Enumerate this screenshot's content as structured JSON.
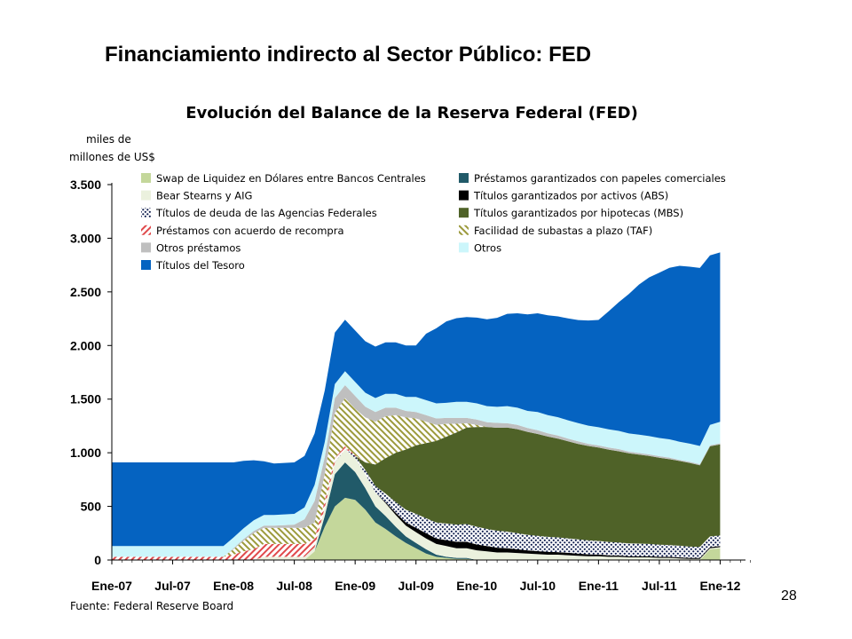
{
  "slide": {
    "title": "Financiamiento indirecto al Sector Público: FED",
    "page_number": "28"
  },
  "chart_data": {
    "type": "area",
    "stacked": true,
    "title": "Evolución del Balance de la Reserva Federal (FED)",
    "ylabel_line1": "miles de",
    "ylabel_line2": "millones de US$",
    "source": "Fuente: Federal Reserve Board",
    "ylim": [
      0,
      3500
    ],
    "yticks": [
      0,
      500,
      1000,
      1500,
      2000,
      2500,
      3000,
      3500
    ],
    "ytick_labels": [
      "0",
      "500",
      "1.000",
      "1.500",
      "2.000",
      "2.500",
      "3.000",
      "3.500"
    ],
    "x_tick_labels": [
      "Ene-07",
      "Jul-07",
      "Ene-08",
      "Jul-08",
      "Ene-09",
      "Jul-09",
      "Ene-10",
      "Jul-10",
      "Ene-11",
      "Jul-11",
      "Ene-12"
    ],
    "x_tick_pos": [
      0,
      6,
      12,
      18,
      24,
      30,
      36,
      42,
      48,
      54,
      60
    ],
    "x_month_index": [
      0,
      3,
      6,
      9,
      11,
      12,
      13,
      14,
      15,
      17,
      18,
      19,
      20,
      21,
      22,
      23,
      24,
      25,
      26,
      27,
      28,
      29,
      30,
      31,
      32,
      33,
      34,
      35,
      36,
      39,
      42,
      45,
      48,
      51,
      54,
      57,
      59,
      60,
      63
    ],
    "legend_position": "top-left inside, two columns",
    "series": [
      {
        "name": "Swap de Liquidez en Dólares entre Bancos Centrales",
        "color": "#c4d79b",
        "pattern": "solid",
        "values": [
          0,
          0,
          0,
          0,
          0,
          0,
          0,
          0,
          0,
          0,
          0,
          0,
          0,
          0,
          0,
          0,
          0,
          0,
          0,
          0,
          0,
          0,
          0,
          0,
          0,
          0,
          0,
          0,
          0,
          0,
          0,
          0,
          0,
          0,
          0,
          0,
          0,
          0,
          0
        ]
      },
      {
        "name": "Préstamos garantizados con papeles comerciales",
        "color": "#215a69",
        "pattern": "solid",
        "values": [
          0,
          0,
          0,
          0,
          0,
          0,
          0,
          0,
          0,
          0,
          0,
          0,
          0,
          0,
          0,
          0,
          0,
          0,
          0,
          0,
          0,
          0,
          0,
          0,
          0,
          0,
          0,
          0,
          0,
          0,
          0,
          0,
          0,
          0,
          0,
          0,
          0,
          0,
          0
        ]
      },
      {
        "name": "Bear Stearns y AIG",
        "color": "#ebf1de",
        "pattern": "solid",
        "values": [
          0,
          0,
          0,
          0,
          0,
          0,
          0,
          0,
          0,
          0,
          0,
          0,
          0,
          0,
          0,
          0,
          0,
          0,
          0,
          0,
          0,
          0,
          0,
          0,
          0,
          0,
          0,
          0,
          0,
          0,
          0,
          0,
          0,
          0,
          0,
          0,
          0,
          0,
          0
        ]
      },
      {
        "name": "Títulos garantizados por activos (ABS)",
        "color": "#000000",
        "pattern": "solid",
        "values": [
          0,
          0,
          0,
          0,
          0,
          0,
          0,
          0,
          0,
          0,
          0,
          0,
          0,
          0,
          0,
          0,
          0,
          0,
          0,
          0,
          0,
          0,
          0,
          0,
          0,
          0,
          0,
          0,
          0,
          0,
          0,
          0,
          0,
          0,
          0,
          0,
          0,
          0,
          0
        ]
      },
      {
        "name": "Títulos de deuda de las Agencias Federales",
        "color": "#0d1b4c",
        "pattern": "dots",
        "values": [
          0,
          0,
          0,
          0,
          0,
          0,
          0,
          0,
          0,
          0,
          0,
          0,
          0,
          0,
          0,
          0,
          0,
          0,
          0,
          0,
          0,
          0,
          0,
          0,
          0,
          0,
          0,
          0,
          0,
          0,
          0,
          0,
          0,
          0,
          0,
          0,
          0,
          0,
          0
        ]
      },
      {
        "name": "Títulos garantizados por hipotecas (MBS)",
        "color": "#4f6228",
        "pattern": "solid",
        "values": [
          0,
          0,
          0,
          0,
          0,
          0,
          0,
          0,
          0,
          0,
          0,
          0,
          0,
          0,
          0,
          0,
          0,
          0,
          0,
          0,
          0,
          0,
          0,
          0,
          0,
          0,
          0,
          0,
          0,
          0,
          0,
          0,
          0,
          0,
          0,
          0,
          0,
          0,
          0
        ]
      },
      {
        "name": "Préstamos con acuerdo de recompra",
        "color": "#e0494b",
        "pattern": "hatch",
        "values": [
          30,
          30,
          35,
          40,
          45,
          50,
          55,
          60,
          65,
          70,
          75,
          80,
          80,
          80,
          80,
          80,
          80,
          80,
          80,
          80,
          80,
          80,
          80,
          80,
          80,
          80,
          80,
          80,
          80,
          80,
          80,
          80,
          80,
          80,
          80,
          80,
          80,
          80,
          80
        ]
      },
      {
        "name": "Facilidad de subastas a plazo (TAF)",
        "color": "#9c9a3c",
        "pattern": "hatch",
        "values": [
          0,
          0,
          0,
          0,
          0,
          0,
          0,
          0,
          0,
          0,
          0,
          0,
          0,
          0,
          0,
          0,
          0,
          0,
          0,
          0,
          0,
          0,
          0,
          0,
          0,
          0,
          0,
          0,
          0,
          0,
          0,
          0,
          0,
          0,
          0,
          0,
          0,
          0,
          0
        ]
      },
      {
        "name": "Otros préstamos",
        "color": "#bfbfbf",
        "pattern": "solid",
        "values": [
          0,
          0,
          0,
          0,
          0,
          0,
          0,
          0,
          0,
          0,
          0,
          0,
          0,
          0,
          0,
          0,
          0,
          0,
          0,
          0,
          0,
          0,
          0,
          0,
          0,
          0,
          0,
          0,
          0,
          0,
          0,
          0,
          0,
          0,
          0,
          0,
          0,
          0,
          0
        ]
      },
      {
        "name": "Otros",
        "color": "#ccf6fb",
        "pattern": "solid",
        "values": [
          0,
          0,
          0,
          0,
          0,
          0,
          0,
          0,
          0,
          0,
          0,
          0,
          0,
          0,
          0,
          0,
          0,
          0,
          0,
          0,
          0,
          0,
          0,
          0,
          0,
          0,
          0,
          0,
          0,
          0,
          0,
          0,
          0,
          0,
          0,
          0,
          0,
          0,
          0
        ]
      },
      {
        "name": "Títulos del Tesoro",
        "color": "#0563c1",
        "pattern": "solid",
        "values": [
          0,
          0,
          0,
          0,
          0,
          0,
          0,
          0,
          0,
          0,
          0,
          0,
          0,
          0,
          0,
          0,
          0,
          0,
          0,
          0,
          0,
          0,
          0,
          0,
          0,
          0,
          0,
          0,
          0,
          0,
          0,
          0,
          0,
          0,
          0,
          0,
          0,
          0,
          0
        ]
      }
    ],
    "series_values_cumulative_boundaries": {
      "note_removed": true
    },
    "stacked_values": {
      "swap": [
        0,
        0,
        0,
        0,
        0,
        0,
        0,
        0,
        0,
        0,
        0,
        0,
        0,
        0,
        0,
        0,
        0,
        0,
        0,
        0,
        80,
        310,
        500,
        580,
        560,
        470,
        350,
        290,
        220,
        160,
        110,
        60,
        30,
        20,
        10,
        10,
        0,
        0,
        0,
        0,
        0,
        0,
        0,
        0,
        0,
        0,
        0,
        0,
        0,
        0,
        0,
        0,
        0,
        0,
        0,
        0,
        0,
        0,
        0,
        100,
        110
      ],
      "cp": [
        0,
        0,
        0,
        0,
        0,
        0,
        0,
        0,
        0,
        0,
        0,
        0,
        0,
        0,
        0,
        0,
        0,
        0,
        0,
        0,
        0,
        100,
        300,
        330,
        260,
        200,
        150,
        120,
        90,
        60,
        50,
        40,
        20,
        10,
        10,
        10,
        0,
        0,
        0,
        0,
        0,
        0,
        0,
        0,
        0,
        0,
        0,
        0,
        0,
        0,
        0,
        0,
        0,
        0,
        0,
        0,
        0,
        0,
        0,
        0,
        0
      ],
      "bear": [
        0,
        0,
        0,
        0,
        0,
        0,
        0,
        0,
        0,
        0,
        0,
        0,
        0,
        0,
        0,
        30,
        30,
        30,
        30,
        30,
        40,
        80,
        110,
        120,
        130,
        130,
        130,
        120,
        110,
        100,
        100,
        100,
        100,
        100,
        90,
        90,
        90,
        80,
        70,
        70,
        65,
        60,
        55,
        50,
        50,
        45,
        40,
        35,
        35,
        30,
        30,
        25,
        25,
        25,
        20,
        20,
        15,
        10,
        10,
        10,
        10
      ],
      "abs": [
        0,
        0,
        0,
        0,
        0,
        0,
        0,
        0,
        0,
        0,
        0,
        0,
        0,
        0,
        0,
        0,
        0,
        0,
        0,
        0,
        0,
        0,
        0,
        0,
        0,
        0,
        0,
        10,
        20,
        30,
        40,
        50,
        50,
        55,
        60,
        60,
        55,
        50,
        45,
        40,
        35,
        30,
        28,
        26,
        24,
        22,
        20,
        18,
        16,
        14,
        12,
        10,
        10,
        10,
        10,
        10,
        10,
        10,
        10,
        10,
        10
      ],
      "agency": [
        0,
        0,
        0,
        0,
        0,
        0,
        0,
        0,
        0,
        0,
        0,
        0,
        0,
        0,
        0,
        0,
        0,
        0,
        0,
        0,
        0,
        0,
        0,
        10,
        20,
        40,
        60,
        80,
        100,
        120,
        130,
        140,
        150,
        155,
        160,
        165,
        165,
        160,
        158,
        155,
        150,
        145,
        142,
        140,
        137,
        135,
        132,
        130,
        127,
        125,
        122,
        120,
        118,
        115,
        113,
        110,
        108,
        105,
        103,
        100,
        98
      ],
      "mbs": [
        0,
        0,
        0,
        0,
        0,
        0,
        0,
        0,
        0,
        0,
        0,
        0,
        0,
        0,
        0,
        0,
        0,
        0,
        0,
        0,
        0,
        0,
        0,
        0,
        0,
        70,
        200,
        330,
        460,
        560,
        640,
        700,
        760,
        810,
        860,
        900,
        930,
        950,
        960,
        970,
        970,
        960,
        950,
        935,
        920,
        905,
        890,
        880,
        870,
        860,
        850,
        840,
        830,
        820,
        810,
        800,
        790,
        780,
        760,
        840,
        850
      ],
      "repo": [
        30,
        30,
        30,
        30,
        30,
        30,
        30,
        30,
        30,
        30,
        30,
        30,
        50,
        80,
        100,
        120,
        120,
        120,
        120,
        120,
        80,
        60,
        40,
        20,
        10,
        0,
        0,
        0,
        0,
        0,
        0,
        0,
        0,
        0,
        0,
        0,
        0,
        0,
        0,
        0,
        0,
        0,
        0,
        0,
        0,
        0,
        0,
        0,
        0,
        0,
        0,
        0,
        0,
        0,
        0,
        0,
        0,
        0,
        0,
        0,
        0
      ],
      "taf": [
        0,
        0,
        0,
        0,
        0,
        0,
        0,
        0,
        0,
        0,
        0,
        0,
        50,
        100,
        150,
        150,
        150,
        150,
        150,
        150,
        150,
        250,
        420,
        450,
        430,
        420,
        400,
        390,
        350,
        300,
        250,
        200,
        150,
        120,
        80,
        40,
        20,
        0,
        0,
        0,
        0,
        0,
        0,
        0,
        0,
        0,
        0,
        0,
        0,
        0,
        0,
        0,
        0,
        0,
        0,
        0,
        0,
        0,
        0,
        0,
        0
      ],
      "other_loans": [
        0,
        0,
        0,
        0,
        0,
        0,
        0,
        0,
        0,
        0,
        0,
        0,
        10,
        15,
        20,
        20,
        20,
        25,
        30,
        80,
        200,
        160,
        140,
        120,
        120,
        100,
        90,
        80,
        70,
        60,
        60,
        60,
        60,
        55,
        55,
        50,
        50,
        45,
        45,
        40,
        40,
        35,
        35,
        30,
        30,
        25,
        25,
        20,
        20,
        20,
        20,
        15,
        15,
        15,
        15,
        15,
        10,
        10,
        10,
        10,
        10
      ],
      "others": [
        100,
        100,
        100,
        100,
        100,
        100,
        100,
        100,
        100,
        100,
        100,
        100,
        100,
        100,
        100,
        100,
        100,
        100,
        100,
        110,
        150,
        140,
        130,
        130,
        130,
        130,
        130,
        130,
        130,
        130,
        140,
        140,
        140,
        140,
        150,
        150,
        150,
        150,
        150,
        160,
        160,
        160,
        170,
        170,
        170,
        170,
        170,
        170,
        170,
        170,
        170,
        170,
        170,
        170,
        170,
        170,
        170,
        170,
        170,
        190,
        200
      ],
      "treasury": [
        780,
        780,
        780,
        780,
        780,
        780,
        780,
        780,
        780,
        780,
        780,
        780,
        700,
        630,
        560,
        500,
        480,
        480,
        480,
        480,
        480,
        480,
        480,
        480,
        480,
        480,
        480,
        480,
        480,
        480,
        480,
        620,
        700,
        760,
        780,
        790,
        800,
        810,
        830,
        860,
        880,
        900,
        920,
        930,
        940,
        950,
        960,
        980,
        1000,
        1100,
        1200,
        1300,
        1400,
        1480,
        1540,
        1600,
        1640,
        1650,
        1660,
        1580,
        1580
      ]
    }
  }
}
